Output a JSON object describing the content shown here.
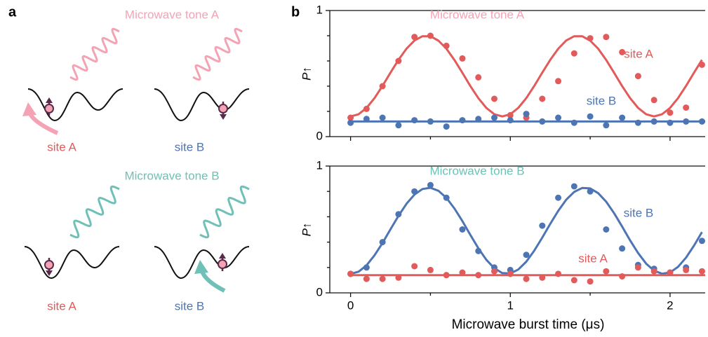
{
  "panel_a": {
    "label": "a",
    "tone_a": "Microwave tone A",
    "tone_b": "Microwave tone B",
    "sites": [
      "site A",
      "site B",
      "site A",
      "site B"
    ]
  },
  "panel_b": {
    "label": "b"
  },
  "chart_data": [
    {
      "type": "line",
      "ylabel": "P↑",
      "xlim": [
        -0.13,
        2.22
      ],
      "ylim": [
        0,
        1
      ],
      "yticks": [
        0,
        1
      ],
      "yminor": [
        0.2,
        0.4,
        0.6,
        0.8
      ],
      "xticks": [
        0,
        1,
        2
      ],
      "xminor": [
        0.5,
        1.5
      ],
      "show_xtick_labels": false,
      "annotations": [
        {
          "text": "Microwave tone A",
          "color": "#f4a3b4"
        },
        {
          "text": "site A",
          "color": "#e25a5a"
        },
        {
          "text": "site B",
          "color": "#4d74b3"
        }
      ],
      "series": [
        {
          "style": "markers",
          "color": "#e25a5a",
          "x": [
            0,
            0.1,
            0.2,
            0.3,
            0.4,
            0.5,
            0.6,
            0.7,
            0.8,
            0.9,
            1,
            1.1,
            1.2,
            1.3,
            1.4,
            1.5,
            1.6,
            1.7,
            1.8,
            1.9,
            2,
            2.1,
            2.2
          ],
          "values": [
            0.15,
            0.22,
            0.4,
            0.6,
            0.79,
            0.8,
            0.72,
            0.62,
            0.47,
            0.3,
            0.17,
            0.15,
            0.3,
            0.44,
            0.66,
            0.78,
            0.79,
            0.67,
            0.48,
            0.29,
            0.19,
            0.23,
            0.57
          ]
        },
        {
          "style": "markers",
          "color": "#4d74b3",
          "x": [
            0,
            0.1,
            0.2,
            0.3,
            0.4,
            0.5,
            0.6,
            0.7,
            0.8,
            0.9,
            1,
            1.1,
            1.2,
            1.3,
            1.4,
            1.5,
            1.6,
            1.7,
            1.8,
            1.9,
            2,
            2.1,
            2.2
          ],
          "values": [
            0.11,
            0.14,
            0.15,
            0.09,
            0.13,
            0.12,
            0.08,
            0.13,
            0.14,
            0.15,
            0.13,
            0.18,
            0.12,
            0.15,
            0.11,
            0.16,
            0.09,
            0.15,
            0.11,
            0.12,
            0.11,
            0.12,
            0.12
          ]
        },
        {
          "style": "line",
          "color": "#e25a5a",
          "x": [
            0,
            0.05,
            0.1,
            0.15,
            0.2,
            0.25,
            0.3,
            0.35,
            0.4,
            0.45,
            0.5,
            0.55,
            0.6,
            0.65,
            0.7,
            0.75,
            0.8,
            0.85,
            0.9,
            0.95,
            1,
            1.05,
            1.1,
            1.15,
            1.2,
            1.25,
            1.3,
            1.35,
            1.4,
            1.45,
            1.5,
            1.55,
            1.6,
            1.65,
            1.7,
            1.75,
            1.8,
            1.85,
            1.9,
            1.95,
            2,
            2.05,
            2.1,
            2.15,
            2.2
          ],
          "values": [
            0.16,
            0.177,
            0.228,
            0.305,
            0.402,
            0.507,
            0.609,
            0.697,
            0.762,
            0.796,
            0.796,
            0.761,
            0.697,
            0.608,
            0.506,
            0.401,
            0.305,
            0.228,
            0.177,
            0.16,
            0.177,
            0.228,
            0.305,
            0.402,
            0.507,
            0.609,
            0.697,
            0.762,
            0.796,
            0.796,
            0.761,
            0.697,
            0.608,
            0.506,
            0.401,
            0.305,
            0.228,
            0.177,
            0.16,
            0.177,
            0.228,
            0.305,
            0.402,
            0.507,
            0.609
          ]
        },
        {
          "style": "line",
          "color": "#4d74b3",
          "x": [
            0,
            2.22
          ],
          "values": [
            0.12,
            0.12
          ]
        }
      ]
    },
    {
      "type": "line",
      "ylabel": "P↑",
      "xlabel": "Microwave burst time (μs)",
      "xlim": [
        -0.13,
        2.22
      ],
      "ylim": [
        0,
        1
      ],
      "yticks": [
        0,
        1
      ],
      "yminor": [
        0.2,
        0.4,
        0.6,
        0.8
      ],
      "xticks": [
        0,
        1,
        2
      ],
      "xminor": [
        0.5,
        1.5
      ],
      "show_xtick_labels": true,
      "annotations": [
        {
          "text": "Microwave tone B",
          "color": "#6fc0b6"
        },
        {
          "text": "site B",
          "color": "#4d74b3"
        },
        {
          "text": "site A",
          "color": "#e25a5a"
        }
      ],
      "series": [
        {
          "style": "markers",
          "color": "#4d74b3",
          "x": [
            0,
            0.1,
            0.2,
            0.3,
            0.4,
            0.5,
            0.6,
            0.7,
            0.8,
            0.9,
            1,
            1.1,
            1.2,
            1.3,
            1.4,
            1.5,
            1.6,
            1.7,
            1.8,
            1.9,
            2,
            2.1,
            2.2
          ],
          "values": [
            0.15,
            0.2,
            0.4,
            0.62,
            0.8,
            0.85,
            0.75,
            0.5,
            0.33,
            0.2,
            0.18,
            0.3,
            0.53,
            0.75,
            0.84,
            0.8,
            0.5,
            0.35,
            0.22,
            0.19,
            0.16,
            0.2,
            0.41
          ]
        },
        {
          "style": "markers",
          "color": "#e25a5a",
          "x": [
            0,
            0.1,
            0.2,
            0.3,
            0.4,
            0.5,
            0.6,
            0.7,
            0.8,
            0.9,
            1,
            1.1,
            1.2,
            1.3,
            1.4,
            1.5,
            1.6,
            1.7,
            1.8,
            1.9,
            2,
            2.1,
            2.2
          ],
          "values": [
            0.15,
            0.11,
            0.11,
            0.12,
            0.21,
            0.18,
            0.14,
            0.16,
            0.14,
            0.17,
            0.15,
            0.11,
            0.12,
            0.15,
            0.1,
            0.09,
            0.17,
            0.13,
            0.2,
            0.17,
            0.16,
            0.18,
            0.17
          ]
        },
        {
          "style": "line",
          "color": "#4d74b3",
          "x": [
            0,
            0.05,
            0.1,
            0.15,
            0.2,
            0.25,
            0.3,
            0.35,
            0.4,
            0.45,
            0.5,
            0.55,
            0.6,
            0.65,
            0.7,
            0.75,
            0.8,
            0.85,
            0.9,
            0.95,
            1,
            1.05,
            1.1,
            1.15,
            1.2,
            1.25,
            1.3,
            1.35,
            1.4,
            1.45,
            1.5,
            1.55,
            1.6,
            1.65,
            1.7,
            1.75,
            1.8,
            1.85,
            1.9,
            1.95,
            2,
            2.05,
            2.1,
            2.15,
            2.2
          ],
          "values": [
            0.15,
            0.167,
            0.217,
            0.296,
            0.393,
            0.501,
            0.607,
            0.702,
            0.775,
            0.819,
            0.829,
            0.805,
            0.749,
            0.666,
            0.566,
            0.457,
            0.352,
            0.261,
            0.194,
            0.156,
            0.153,
            0.184,
            0.246,
            0.333,
            0.436,
            0.544,
            0.647,
            0.734,
            0.796,
            0.827,
            0.824,
            0.786,
            0.719,
            0.628,
            0.523,
            0.414,
            0.314,
            0.231,
            0.175,
            0.151,
            0.161,
            0.205,
            0.278,
            0.373,
            0.479
          ]
        },
        {
          "style": "line",
          "color": "#e25a5a",
          "x": [
            0,
            2.22
          ],
          "values": [
            0.14,
            0.14
          ]
        }
      ]
    }
  ]
}
